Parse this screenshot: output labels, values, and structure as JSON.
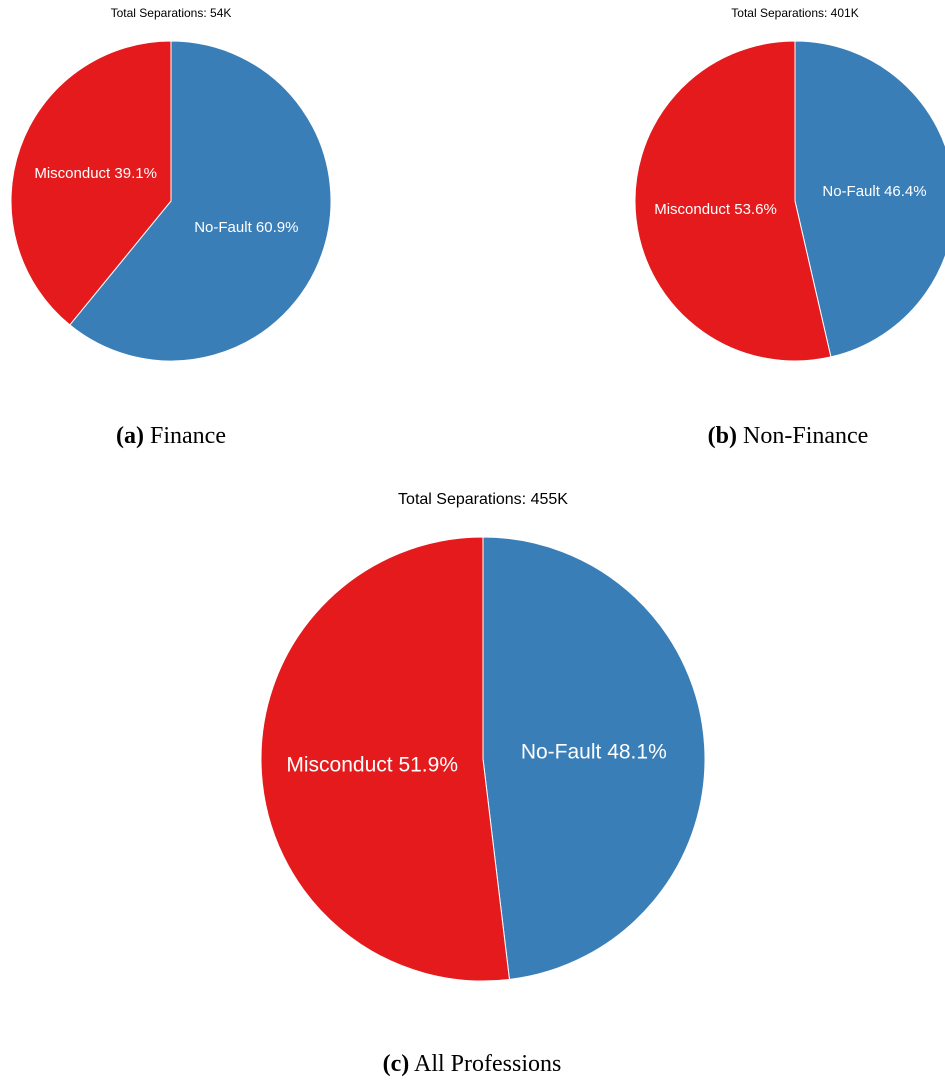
{
  "chart_data": [
    {
      "type": "pie",
      "title": "Total Separations: 54K",
      "caption_label": "(a)",
      "caption": "Finance",
      "categories": [
        "No-Fault",
        "Misconduct"
      ],
      "values": [
        60.9,
        39.1
      ],
      "value_labels": [
        "60.9%",
        "39.1%"
      ],
      "colors": [
        "#3a7eb8",
        "#e41a1c"
      ]
    },
    {
      "type": "pie",
      "title": "Total Separations: 401K",
      "caption_label": "(b)",
      "caption": "Non-Finance",
      "categories": [
        "No-Fault",
        "Misconduct"
      ],
      "values": [
        46.4,
        53.6
      ],
      "value_labels": [
        "46.4%",
        "53.6%"
      ],
      "colors": [
        "#3a7eb8",
        "#e41a1c"
      ]
    },
    {
      "type": "pie",
      "title": "Total Separations: 455K",
      "caption_label": "(c)",
      "caption": "All Professions",
      "categories": [
        "No-Fault",
        "Misconduct"
      ],
      "values": [
        48.1,
        51.9
      ],
      "value_labels": [
        "48.1%",
        "51.9%"
      ],
      "colors": [
        "#3a7eb8",
        "#e41a1c"
      ]
    }
  ]
}
